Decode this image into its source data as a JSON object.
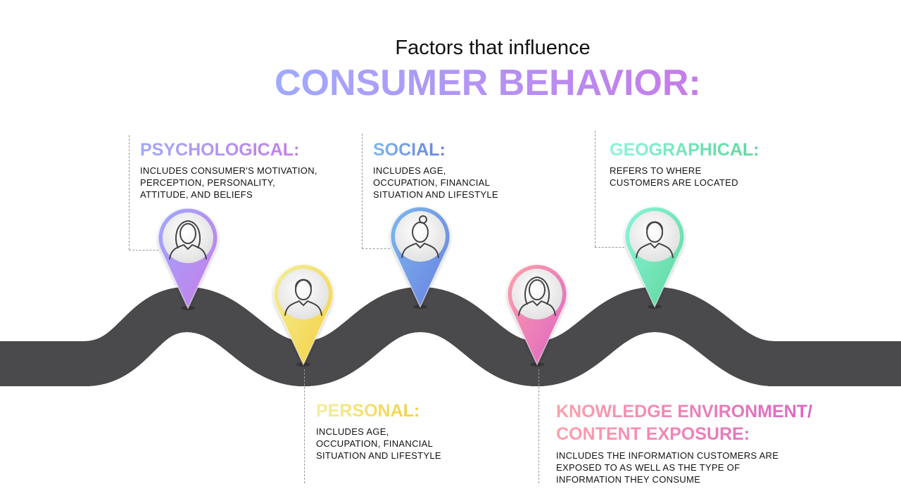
{
  "title": {
    "subtitle": "Factors that influence",
    "main": "CONSUMER BEHAVIOR:"
  },
  "factors": [
    {
      "heading": "PSYCHOLOGICAL:",
      "text": "INCLUDES CONSUMER'S MOTIVATION,\nPERCEPTION, PERSONALITY,\nATTITUDE, AND BELIEFS",
      "colors": [
        "#9fa8ff",
        "#c87ce6"
      ],
      "icon": "woman-long-hair-icon"
    },
    {
      "heading": "PERSONAL:",
      "text": "INCLUDES AGE,\nOCCUPATION, FINANCIAL\nSITUATION AND LIFESTYLE",
      "colors": [
        "#f3ef9a",
        "#f4cf3f"
      ],
      "icon": "man-icon"
    },
    {
      "heading": "SOCIAL:",
      "text": "INCLUDES AGE,\nOCCUPATION, FINANCIAL\nSITUATION AND LIFESTYLE",
      "colors": [
        "#7ab8ee",
        "#6b80e0"
      ],
      "icon": "woman-bun-icon"
    },
    {
      "heading": "KNOWLEDGE ENVIRONMENT/\nCONTENT EXPOSURE:",
      "text": " INCLUDES THE INFORMATION CUSTOMERS ARE\nEXPOSED TO AS WELL AS THE TYPE OF\nINFORMATION THEY CONSUME",
      "colors": [
        "#ffa0aa",
        "#dc64c4"
      ],
      "icon": "woman-straight-hair-icon"
    },
    {
      "heading": "GEOGRAPHICAL:",
      "text": "REFERS TO WHERE\nCUSTOMERS ARE LOCATED",
      "colors": [
        "#8af5dc",
        "#5ed69a"
      ],
      "icon": "man-collar-icon"
    }
  ]
}
